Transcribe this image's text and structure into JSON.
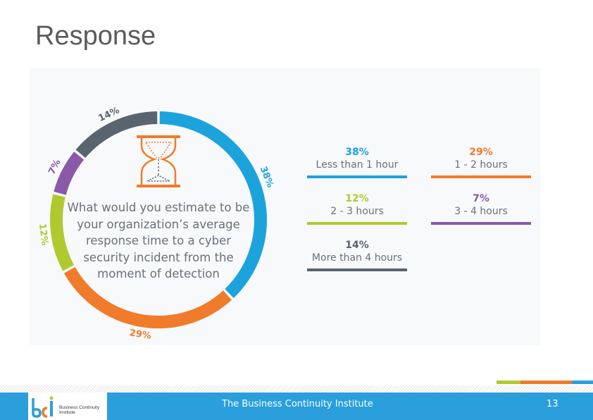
{
  "slide": {
    "title": "Response",
    "footer_text": "The Business Continuity Institute",
    "page_number": "13",
    "logo_text": "Business Continuity Institute"
  },
  "chart_data": {
    "type": "pie",
    "question": "What would you estimate to be your organization’s average response time to a cyber security incident from the moment of detection",
    "slices": [
      {
        "label": "Less than 1 hour",
        "value": 38,
        "display": "38%",
        "color": "#1ca3dc"
      },
      {
        "label": "1 - 2 hours",
        "value": 29,
        "display": "29%",
        "color": "#f07b2a"
      },
      {
        "label": "2 - 3 hours",
        "value": 12,
        "display": "12%",
        "color": "#b1c931"
      },
      {
        "label": "3 - 4 hours",
        "value": 7,
        "display": "7%",
        "color": "#8a59a8"
      },
      {
        "label": "More than 4 hours",
        "value": 14,
        "display": "14%",
        "color": "#59646e"
      }
    ]
  },
  "colors": {
    "footer_blue": "#2a9fdc",
    "accent_green": "#b1c931",
    "accent_orange": "#f07b2a",
    "text_gray": "#6b7078",
    "hourglass_orange": "#f07b2a"
  },
  "icons": {
    "hourglass": "hourglass-icon",
    "logo": "bci-logo-icon"
  }
}
